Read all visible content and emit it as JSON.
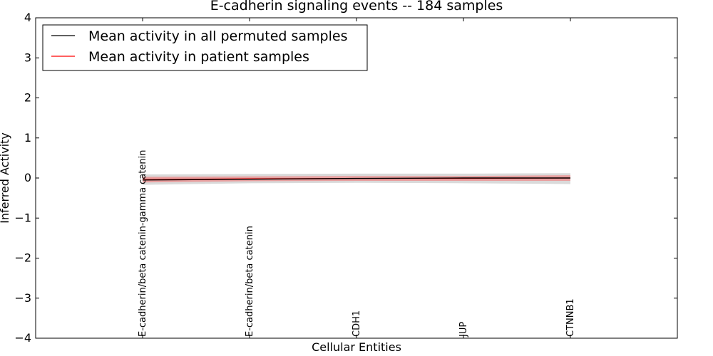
{
  "chart_data": {
    "type": "line",
    "title": "E-cadherin signaling events -- 184 samples",
    "xlabel": "Cellular Entities",
    "ylabel": "Inferred Activity",
    "ylim": [
      -4,
      4
    ],
    "yticks": [
      4,
      3,
      2,
      1,
      0,
      -1,
      -2,
      -3,
      -4
    ],
    "ytick_labels": [
      "4",
      "3",
      "2",
      "1",
      "0",
      "−1",
      "−2",
      "−3",
      "−4"
    ],
    "categories": [
      "E-cadherin/beta catenin-gamma catenin",
      "E-cadherin/beta catenin",
      "CDH1",
      "JUP",
      "CTNNB1"
    ],
    "series": [
      {
        "name": "Mean activity in all permuted samples",
        "color": "#000000",
        "values": [
          -0.05,
          -0.03,
          -0.01,
          0.0,
          0.0
        ],
        "band": {
          "lower": [
            -0.17,
            -0.13,
            -0.12,
            -0.13,
            -0.15
          ],
          "upper": [
            0.09,
            0.1,
            0.11,
            0.11,
            0.12
          ],
          "color": "#bbbbbb"
        }
      },
      {
        "name": "Mean activity in patient samples",
        "color": "#ff0000",
        "values": [
          -0.04,
          -0.02,
          -0.01,
          -0.01,
          0.0
        ],
        "band": {
          "lower": [
            -0.11,
            -0.08,
            -0.07,
            -0.07,
            -0.07
          ],
          "upper": [
            0.03,
            0.04,
            0.05,
            0.05,
            0.07
          ],
          "color": "#f08080"
        }
      }
    ],
    "grid": false,
    "legend_position": "top-left"
  }
}
